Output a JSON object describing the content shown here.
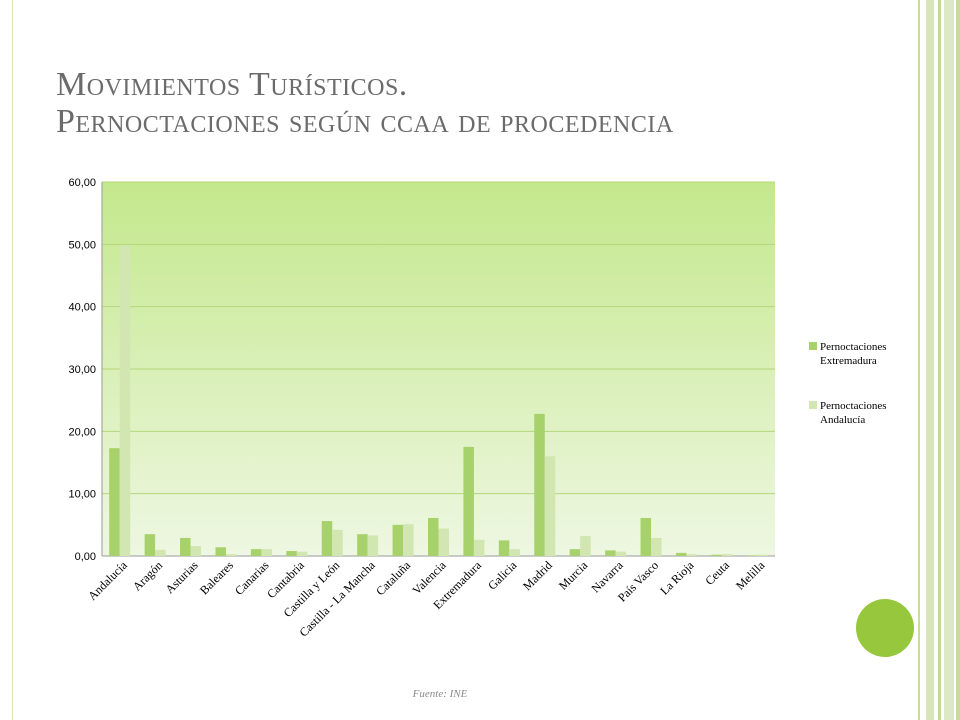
{
  "slide": {
    "title_line1": "Movimientos Turísticos.",
    "title_line2": "Pernoctaciones según ccaa de procedencia",
    "source": "Fuente: INE"
  },
  "colors": {
    "series_extremadura": "#a7d16a",
    "series_andalucia": "#d2e6b2",
    "plot_top": "#c4e88c",
    "plot_bottom": "#eef7e2",
    "accent_circle": "#96c73c"
  },
  "chart_data": {
    "type": "bar",
    "title": "",
    "xlabel": "",
    "ylabel": "",
    "ylim": [
      0,
      60
    ],
    "yticks": [
      "0,00",
      "10,00",
      "20,00",
      "30,00",
      "40,00",
      "50,00",
      "60,00"
    ],
    "grid": true,
    "legend_position": "right",
    "categories": [
      "Andalucía",
      "Aragón",
      "Asturias",
      "Baleares",
      "Canarias",
      "Cantabria",
      "Castilla y León",
      "Castilla - La Mancha",
      "Cataluña",
      "Valencia",
      "Extremadura",
      "Galicia",
      "Madrid",
      "Murcia",
      "Navarra",
      "País Vasco",
      "La Rioja",
      "Ceuta",
      "Melilla"
    ],
    "series": [
      {
        "name": "Pernoctaciones Extremadura",
        "values": [
          17.3,
          3.5,
          2.9,
          1.4,
          1.1,
          0.8,
          5.6,
          3.5,
          5.0,
          6.1,
          17.5,
          2.5,
          22.8,
          1.1,
          0.9,
          6.1,
          0.5,
          0.2,
          0.1
        ]
      },
      {
        "name": "Pernoctaciones Andalucía",
        "values": [
          49.8,
          1.0,
          1.6,
          0.3,
          1.1,
          0.7,
          4.2,
          3.3,
          5.1,
          4.4,
          2.6,
          1.1,
          16.0,
          3.2,
          0.7,
          2.9,
          0.3,
          0.3,
          0.2
        ]
      }
    ]
  }
}
